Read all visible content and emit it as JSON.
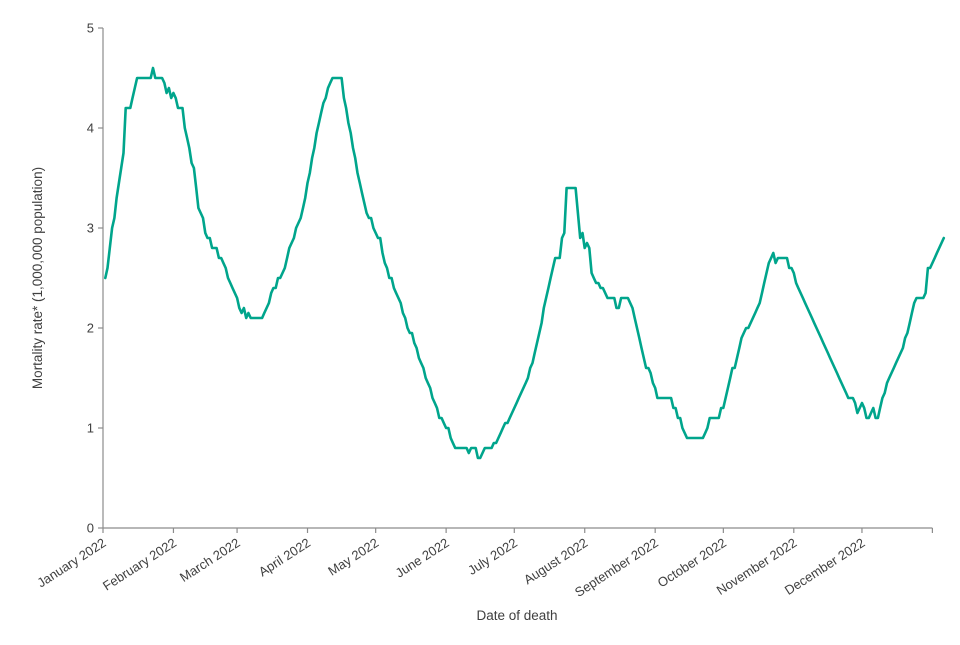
{
  "chart_data": {
    "type": "line",
    "title": "",
    "xlabel": "Date of death",
    "ylabel": "Mortality rate* (1,000,000 population)",
    "x_tick_labels": [
      "January 2022",
      "February 2022",
      "March 2022",
      "April 2022",
      "May 2022",
      "June 2022",
      "July 2022",
      "August 2022",
      "September 2022",
      "October 2022",
      "November 2022",
      "December 2022"
    ],
    "month_start_days": [
      0,
      31,
      59,
      90,
      120,
      151,
      181,
      212,
      243,
      273,
      304,
      334,
      365
    ],
    "y_tick_labels": [
      "0",
      "1",
      "2",
      "3",
      "4",
      "5"
    ],
    "y_ticks": [
      0,
      1,
      2,
      3,
      4,
      5
    ],
    "ylim": [
      0,
      5
    ],
    "grid": false,
    "legend": "none",
    "line_color": "#00A58C",
    "axis_color": "#8C8C8C",
    "text_color": "#404040",
    "series": [
      {
        "name": "Mortality rate per 1,000,000 population",
        "start_day": 1,
        "step_days": 1,
        "values": [
          2.5,
          2.6,
          2.8,
          3.0,
          3.1,
          3.3,
          3.45,
          3.6,
          3.75,
          4.2,
          4.2,
          4.2,
          4.3,
          4.4,
          4.5,
          4.5,
          4.5,
          4.5,
          4.5,
          4.5,
          4.5,
          4.6,
          4.5,
          4.5,
          4.5,
          4.5,
          4.45,
          4.35,
          4.4,
          4.3,
          4.35,
          4.3,
          4.2,
          4.2,
          4.2,
          4.0,
          3.9,
          3.8,
          3.65,
          3.6,
          3.4,
          3.2,
          3.15,
          3.1,
          2.95,
          2.9,
          2.9,
          2.8,
          2.8,
          2.8,
          2.7,
          2.7,
          2.65,
          2.6,
          2.5,
          2.45,
          2.4,
          2.35,
          2.3,
          2.2,
          2.15,
          2.2,
          2.1,
          2.15,
          2.1,
          2.1,
          2.1,
          2.1,
          2.1,
          2.1,
          2.15,
          2.2,
          2.25,
          2.35,
          2.4,
          2.4,
          2.5,
          2.5,
          2.55,
          2.6,
          2.7,
          2.8,
          2.85,
          2.9,
          3.0,
          3.05,
          3.1,
          3.2,
          3.3,
          3.45,
          3.55,
          3.7,
          3.8,
          3.95,
          4.05,
          4.15,
          4.25,
          4.3,
          4.4,
          4.45,
          4.5,
          4.5,
          4.5,
          4.5,
          4.5,
          4.3,
          4.2,
          4.05,
          3.95,
          3.8,
          3.7,
          3.55,
          3.45,
          3.35,
          3.25,
          3.15,
          3.1,
          3.1,
          3.0,
          2.95,
          2.9,
          2.9,
          2.75,
          2.65,
          2.6,
          2.5,
          2.5,
          2.4,
          2.35,
          2.3,
          2.25,
          2.15,
          2.1,
          2.0,
          1.95,
          1.95,
          1.85,
          1.8,
          1.7,
          1.65,
          1.6,
          1.5,
          1.45,
          1.4,
          1.3,
          1.25,
          1.2,
          1.1,
          1.1,
          1.05,
          1.0,
          1.0,
          0.9,
          0.85,
          0.8,
          0.8,
          0.8,
          0.8,
          0.8,
          0.8,
          0.75,
          0.8,
          0.8,
          0.8,
          0.7,
          0.7,
          0.75,
          0.8,
          0.8,
          0.8,
          0.8,
          0.85,
          0.85,
          0.9,
          0.95,
          1.0,
          1.05,
          1.05,
          1.1,
          1.15,
          1.2,
          1.25,
          1.3,
          1.35,
          1.4,
          1.45,
          1.5,
          1.6,
          1.65,
          1.75,
          1.85,
          1.95,
          2.05,
          2.2,
          2.3,
          2.4,
          2.5,
          2.6,
          2.7,
          2.7,
          2.7,
          2.9,
          2.95,
          3.4,
          3.4,
          3.4,
          3.4,
          3.4,
          3.15,
          2.9,
          2.95,
          2.8,
          2.85,
          2.8,
          2.55,
          2.5,
          2.45,
          2.45,
          2.4,
          2.4,
          2.35,
          2.3,
          2.3,
          2.3,
          2.3,
          2.2,
          2.2,
          2.3,
          2.3,
          2.3,
          2.3,
          2.25,
          2.2,
          2.1,
          2.0,
          1.9,
          1.8,
          1.7,
          1.6,
          1.6,
          1.55,
          1.45,
          1.4,
          1.3,
          1.3,
          1.3,
          1.3,
          1.3,
          1.3,
          1.3,
          1.2,
          1.2,
          1.1,
          1.1,
          1.0,
          0.95,
          0.9,
          0.9,
          0.9,
          0.9,
          0.9,
          0.9,
          0.9,
          0.9,
          0.95,
          1.0,
          1.1,
          1.1,
          1.1,
          1.1,
          1.1,
          1.2,
          1.2,
          1.3,
          1.4,
          1.5,
          1.6,
          1.6,
          1.7,
          1.8,
          1.9,
          1.95,
          2.0,
          2.0,
          2.05,
          2.1,
          2.15,
          2.2,
          2.25,
          2.35,
          2.45,
          2.55,
          2.65,
          2.7,
          2.75,
          2.65,
          2.7,
          2.7,
          2.7,
          2.7,
          2.7,
          2.6,
          2.6,
          2.55,
          2.45,
          2.4,
          2.35,
          2.3,
          2.25,
          2.2,
          2.15,
          2.1,
          2.05,
          2.0,
          1.95,
          1.9,
          1.85,
          1.8,
          1.75,
          1.7,
          1.65,
          1.6,
          1.55,
          1.5,
          1.45,
          1.4,
          1.35,
          1.3,
          1.3,
          1.3,
          1.25,
          1.15,
          1.2,
          1.25,
          1.2,
          1.1,
          1.1,
          1.15,
          1.2,
          1.1,
          1.1,
          1.2,
          1.3,
          1.35,
          1.45,
          1.5,
          1.55,
          1.6,
          1.65,
          1.7,
          1.75,
          1.8,
          1.9,
          1.95,
          2.05,
          2.15,
          2.25,
          2.3,
          2.3,
          2.3,
          2.3,
          2.35,
          2.6,
          2.6,
          2.65,
          2.7,
          2.75,
          2.8,
          2.85,
          2.9
        ]
      }
    ]
  }
}
